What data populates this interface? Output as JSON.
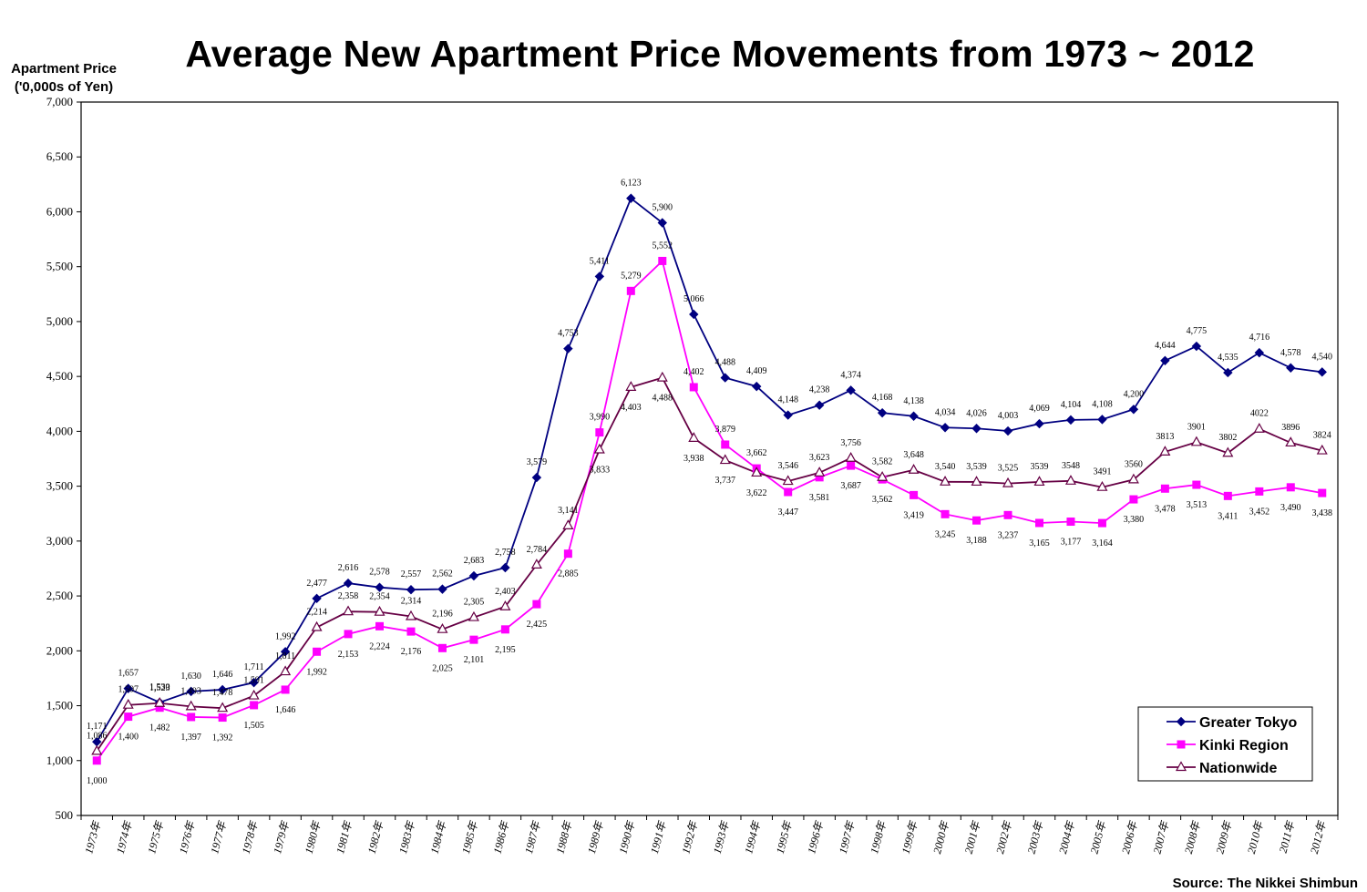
{
  "chart_data": {
    "type": "line",
    "title": "Average New Apartment Price Movements from 1973 ~ 2012",
    "ylabel_line1": "Apartment Price",
    "ylabel_line2": "('0,000s of Yen)",
    "source": "Source: The Nikkei Shimbun",
    "ylim": [
      500,
      7000
    ],
    "yticks": [
      500,
      1000,
      1500,
      2000,
      2500,
      3000,
      3500,
      4000,
      4500,
      5000,
      5500,
      6000,
      6500,
      7000
    ],
    "ytick_labels": [
      "500",
      "1,000",
      "1,500",
      "2,000",
      "2,500",
      "3,000",
      "3,500",
      "4,000",
      "4,500",
      "5,000",
      "5,500",
      "6,000",
      "6,500",
      "7,000"
    ],
    "categories": [
      "1973年",
      "1974年",
      "1975年",
      "1976年",
      "1977年",
      "1978年",
      "1979年",
      "1980年",
      "1981年",
      "1982年",
      "1983年",
      "1984年",
      "1985年",
      "1986年",
      "1987年",
      "1988年",
      "1989年",
      "1990年",
      "1991年",
      "1992年",
      "1993年",
      "1994年",
      "1995年",
      "1996年",
      "1997年",
      "1998年",
      "1999年",
      "2000年",
      "2001年",
      "2002年",
      "2003年",
      "2004年",
      "2005年",
      "2006年",
      "2007年",
      "2008年",
      "2009年",
      "2010年",
      "2011年",
      "2012年"
    ],
    "legend_position": "bottom-right",
    "series": [
      {
        "name": "Greater Tokyo",
        "color": "#000080",
        "marker": "diamond",
        "values": [
          1171,
          1657,
          1530,
          1630,
          1646,
          1711,
          1992,
          2477,
          2616,
          2578,
          2557,
          2562,
          2683,
          2758,
          3579,
          4753,
          5411,
          6123,
          5900,
          5066,
          4488,
          4409,
          4148,
          4238,
          4374,
          4168,
          4138,
          4034,
          4026,
          4003,
          4069,
          4104,
          4108,
          4200,
          4644,
          4775,
          4535,
          4716,
          4578,
          4540
        ],
        "labels": [
          "1,171",
          "1,657",
          "1,530",
          "1,630",
          "1,646",
          "1,711",
          "1,992",
          "2,477",
          "2,616",
          "2,578",
          "2,557",
          "2,562",
          "2,683",
          "2,758",
          "3,579",
          "4,753",
          "5,411",
          "6,123",
          "5,900",
          "5,066",
          "4,488",
          "4,409",
          "4,148",
          "4,238",
          "4,374",
          "4,168",
          "4,138",
          "4,034",
          "4,026",
          "4,003",
          "4,069",
          "4,104",
          "4,108",
          "4,200",
          "4,644",
          "4,775",
          "4,535",
          "4,716",
          "4,578",
          "4,540"
        ]
      },
      {
        "name": "Kinki Region",
        "color": "#ff00ff",
        "marker": "square",
        "values": [
          1000,
          1400,
          1482,
          1397,
          1392,
          1505,
          1646,
          1992,
          2153,
          2224,
          2176,
          2025,
          2101,
          2195,
          2425,
          2885,
          3990,
          5279,
          5552,
          4402,
          3879,
          3662,
          3447,
          3581,
          3687,
          3562,
          3419,
          3245,
          3188,
          3237,
          3165,
          3177,
          3164,
          3380,
          3478,
          3513,
          3411,
          3452,
          3490,
          3438
        ],
        "labels": [
          "1,000",
          "1,400",
          "1,482",
          "1,397",
          "1,392",
          "1,505",
          "1,646",
          "1,992",
          "2,153",
          "2,224",
          "2,176",
          "2,025",
          "2,101",
          "2,195",
          "2,425",
          "2,885",
          "3,990",
          "5,279",
          "5,552",
          "4,402",
          "3,879",
          "3,662",
          "3,447",
          "3,581",
          "3,687",
          "3,562",
          "3,419",
          "3,245",
          "3,188",
          "3,237",
          "3,165",
          "3,177",
          "3,164",
          "3,380",
          "3,478",
          "3,513",
          "3,411",
          "3,452",
          "3,490",
          "3,438"
        ]
      },
      {
        "name": "Nationwide",
        "color": "#660044",
        "marker": "triangle",
        "values": [
          1086,
          1507,
          1523,
          1493,
          1478,
          1591,
          1811,
          2214,
          2358,
          2354,
          2314,
          2196,
          2305,
          2403,
          2784,
          3141,
          3833,
          4403,
          4488,
          3938,
          3737,
          3622,
          3546,
          3623,
          3756,
          3582,
          3648,
          3540,
          3539,
          3525,
          3539,
          3548,
          3491,
          3560,
          3813,
          3901,
          3802,
          4022,
          3896,
          3824
        ],
        "labels": [
          "1,086",
          "1,507",
          "1,523",
          "1,493",
          "1,478",
          "1,591",
          "1,811",
          "2,214",
          "2,358",
          "2,354",
          "2,314",
          "2,196",
          "2,305",
          "2,403",
          "2,784",
          "3,141",
          "3,833",
          "4,403",
          "4,488",
          "3,938",
          "3,737",
          "3,622",
          "3,546",
          "3,623",
          "3,756",
          "3,582",
          "3,648",
          "3,540",
          "3,539",
          "3,525",
          "3539",
          "3548",
          "3491",
          "3560",
          "3813",
          "3901",
          "3802",
          "4022",
          "3896",
          "3824"
        ]
      }
    ]
  }
}
